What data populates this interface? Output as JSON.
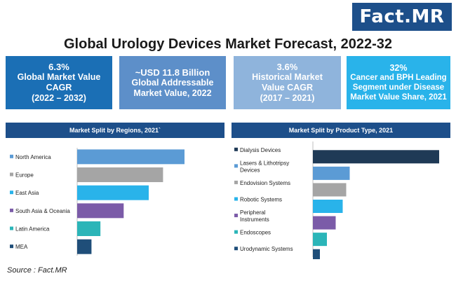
{
  "brand": "Fact.MR",
  "title": "Global Urology Devices Market Forecast, 2022-32",
  "kpis": [
    {
      "value": "6.3%",
      "label1": "Global Market Value",
      "label2": "CAGR",
      "label3": "(2022 – 2032)"
    },
    {
      "value": "~USD 11.8 Billion",
      "label1": "Global Addressable",
      "label2": "Market Value, 2022"
    },
    {
      "value": "3.6%",
      "label1": "Historical Market",
      "label2": "Value CAGR",
      "label3": "(2017 – 2021)"
    },
    {
      "value": "32%",
      "label1": "Cancer and BPH Leading",
      "label2": "Segment under Disease",
      "label3": "Market Value Share, 2021"
    }
  ],
  "source": "Source : Fact.MR",
  "colors": {
    "brand": "#1d4f8a"
  },
  "chart_data": [
    {
      "type": "bar",
      "orientation": "horizontal",
      "title": "Market Split by Regions, 2021`",
      "categories": [
        "North America",
        "Europe",
        "East Asia",
        "South Asia & Oceania",
        "Latin America",
        "MEA"
      ],
      "values": [
        30,
        24,
        20,
        13,
        6.5,
        4
      ],
      "colors": [
        "#5b9bd5",
        "#a5a5a5",
        "#29b3ea",
        "#7b5ba8",
        "#2bb5b8",
        "#1f4e79"
      ],
      "legend_markers": true
    },
    {
      "type": "bar",
      "orientation": "horizontal",
      "title": "Market Split by Product Type, 2021",
      "categories": [
        "Dialysis Devices",
        "Lasers & Lithotripsy Devices",
        "Endovision Systems",
        "Robotic Systems",
        "Peripheral Instruments",
        "Endoscopes",
        "Urodynamic Systems"
      ],
      "values": [
        36,
        10.5,
        9.5,
        8.5,
        6.5,
        4,
        2
      ],
      "colors": [
        "#1f3a56",
        "#5b9bd5",
        "#a5a5a5",
        "#29b3ea",
        "#7b5ba8",
        "#2bb5b8",
        "#1f4e79"
      ],
      "legend_markers": true
    }
  ]
}
